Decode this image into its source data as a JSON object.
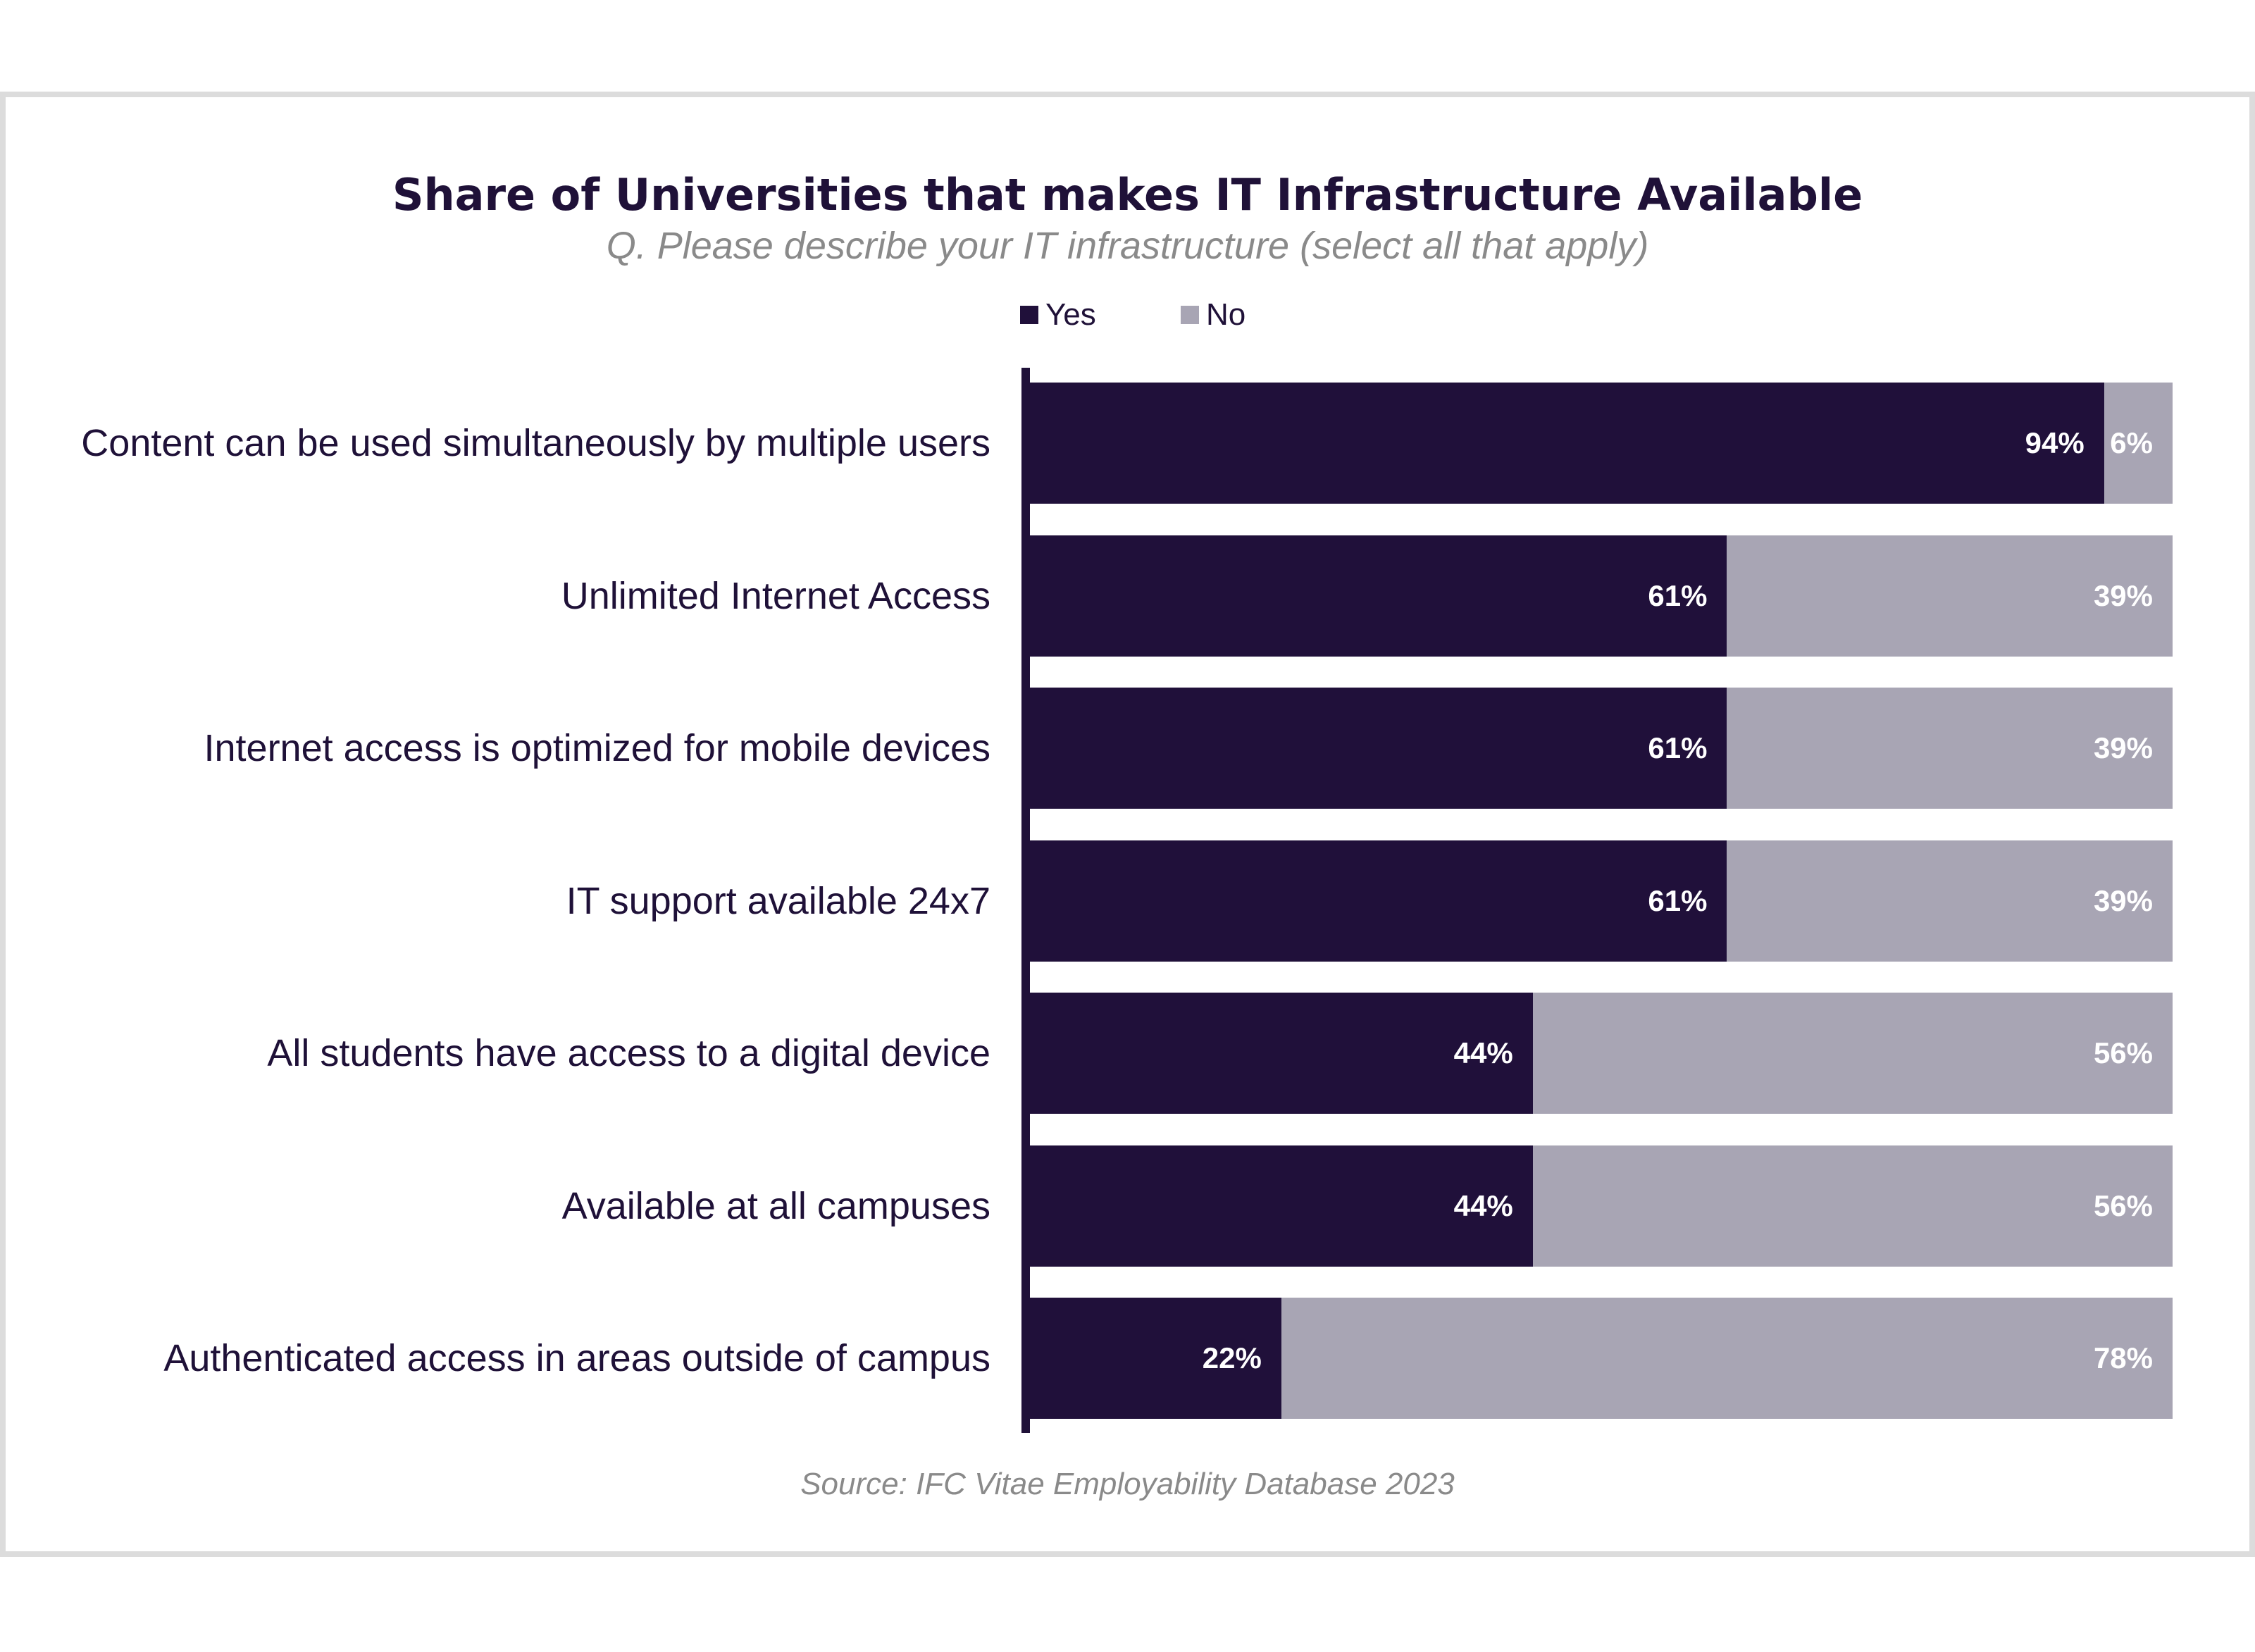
{
  "colors": {
    "yes": "#20103a",
    "no": "#a8a5b4",
    "title": "#1f1138",
    "muted": "#8a8a8a"
  },
  "chart_data": {
    "type": "bar",
    "orientation": "horizontal",
    "stacked": true,
    "title": "Share of Universities that makes IT Infrastructure Available",
    "subtitle": "Q. Please describe your IT infrastructure (select all that apply)",
    "source": "Source: IFC Vitae Employability Database 2023",
    "legend_position": "top",
    "grid": false,
    "xlim": [
      0,
      100
    ],
    "categories": [
      "Content can be used simultaneously by multiple users",
      "Unlimited Internet Access",
      "Internet access is optimized for mobile devices",
      "IT support available 24x7",
      "All students have access to a digital device",
      "Available at all campuses",
      "Authenticated access in areas outside of campus"
    ],
    "series": [
      {
        "name": "Yes",
        "values": [
          94,
          61,
          61,
          61,
          44,
          44,
          22
        ],
        "labels": [
          "94%",
          "61%",
          "61%",
          "61%",
          "44%",
          "44%",
          "22%"
        ]
      },
      {
        "name": "No",
        "values": [
          6,
          39,
          39,
          39,
          56,
          56,
          78
        ],
        "labels": [
          "6%",
          "39%",
          "39%",
          "39%",
          "56%",
          "56%",
          "78%"
        ]
      }
    ]
  }
}
